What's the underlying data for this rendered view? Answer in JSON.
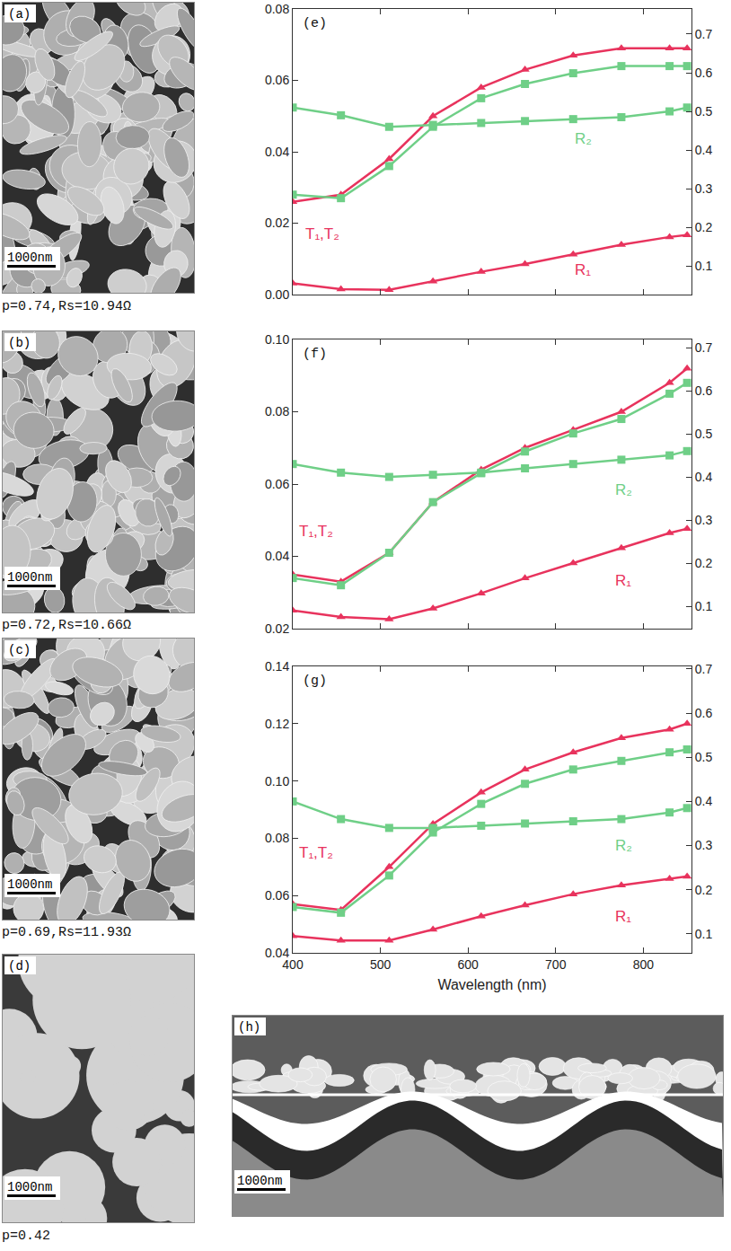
{
  "panels": [
    {
      "label": "(a)",
      "scale_bar": "1000nm",
      "caption": "p=0.74,Rs=10.94Ω"
    },
    {
      "label": "(b)",
      "scale_bar": "1000nm",
      "caption": "p=0.72,Rs=10.66Ω"
    },
    {
      "label": "(c)",
      "scale_bar": "1000nm",
      "caption": "p=0.69,Rs=11.93Ω"
    },
    {
      "label": "(d)",
      "scale_bar": "1000nm",
      "caption": "p=0.42"
    },
    {
      "label": "(h)",
      "scale_bar": "1000nm"
    }
  ],
  "chart_data": [
    {
      "type": "line",
      "label": "(e)",
      "grid": false,
      "tick_labels": "y",
      "x": [
        400,
        455,
        510,
        560,
        615,
        665,
        720,
        775,
        830,
        850
      ],
      "xlim": [
        400,
        855
      ],
      "xticks": [
        400,
        500,
        600,
        700,
        800
      ],
      "ylim": [
        0,
        0.08
      ],
      "yticks": [
        {
          "value": 0,
          "label": "0.00"
        },
        0.02,
        0.04,
        0.06,
        0.08
      ],
      "y2lim": [
        0.026,
        0.765
      ],
      "y2ticks": [
        0.1,
        0.2,
        0.3,
        0.4,
        0.5,
        0.6,
        0.7
      ],
      "series": [
        {
          "name": "T₁",
          "color": "#e8335d",
          "marker": "triangle",
          "values": [
            0.026,
            0.028,
            0.038,
            0.05,
            0.058,
            0.063,
            0.067,
            0.069,
            0.069,
            0.069
          ]
        },
        {
          "name": "T₂",
          "color": "#6fcf87",
          "marker": "square",
          "values": [
            0.028,
            0.027,
            0.036,
            0.047,
            0.055,
            0.059,
            0.062,
            0.064,
            0.064,
            0.064
          ]
        },
        {
          "name": "R₁",
          "color": "#e8335d",
          "marker": "triangle",
          "axis": "y2",
          "values": [
            0.055,
            0.04,
            0.038,
            0.06,
            0.085,
            0.105,
            0.13,
            0.155,
            0.175,
            0.18
          ]
        },
        {
          "name": "R₂",
          "color": "#6fcf87",
          "marker": "square",
          "axis": "y2",
          "values": [
            0.51,
            0.49,
            0.46,
            0.465,
            0.47,
            0.475,
            0.48,
            0.485,
            0.5,
            0.51
          ]
        }
      ],
      "annotations": [
        {
          "text": "T₁,T₂",
          "x": 412,
          "y": 0.017,
          "color": "#e8335d"
        },
        {
          "text": "R₂",
          "x": 720,
          "y": 0.43,
          "axis": "y2",
          "color": "#6fcf87"
        },
        {
          "text": "R₁",
          "x": 720,
          "y": 0.09,
          "axis": "y2",
          "color": "#e8335d"
        }
      ]
    },
    {
      "type": "line",
      "label": "(f)",
      "grid": false,
      "tick_labels": "y",
      "x": [
        400,
        455,
        510,
        560,
        615,
        665,
        720,
        775,
        830,
        850
      ],
      "xlim": [
        400,
        855
      ],
      "xticks": [
        400,
        500,
        600,
        700,
        800
      ],
      "ylim": [
        0.02,
        0.1
      ],
      "yticks": [
        0.02,
        0.04,
        0.06,
        0.08,
        {
          "value": 0.1,
          "label": "0.10"
        }
      ],
      "y2lim": [
        0.048,
        0.719
      ],
      "y2ticks": [
        0.1,
        0.2,
        0.3,
        0.4,
        0.5,
        0.6,
        0.7
      ],
      "series": [
        {
          "name": "T₁",
          "color": "#e8335d",
          "marker": "triangle",
          "values": [
            0.035,
            0.033,
            0.041,
            0.055,
            0.064,
            0.07,
            0.075,
            0.08,
            0.088,
            0.092
          ]
        },
        {
          "name": "T₂",
          "color": "#6fcf87",
          "marker": "square",
          "values": [
            0.034,
            0.032,
            0.041,
            0.055,
            0.063,
            0.069,
            0.074,
            0.078,
            0.085,
            0.088
          ]
        },
        {
          "name": "R₁",
          "color": "#e8335d",
          "marker": "triangle",
          "axis": "y2",
          "values": [
            0.09,
            0.075,
            0.07,
            0.095,
            0.13,
            0.165,
            0.2,
            0.235,
            0.27,
            0.28
          ]
        },
        {
          "name": "R₂",
          "color": "#6fcf87",
          "marker": "square",
          "axis": "y2",
          "values": [
            0.43,
            0.41,
            0.4,
            0.405,
            0.41,
            0.42,
            0.43,
            0.44,
            0.45,
            0.46
          ]
        }
      ],
      "annotations": [
        {
          "text": "T₁,T₂",
          "x": 405,
          "y": 0.047,
          "color": "#e8335d"
        },
        {
          "text": "R₂",
          "x": 766,
          "y": 0.37,
          "axis": "y2",
          "color": "#6fcf87"
        },
        {
          "text": "R₁",
          "x": 766,
          "y": 0.16,
          "axis": "y2",
          "color": "#e8335d"
        }
      ]
    },
    {
      "type": "line",
      "label": "(g)",
      "grid": false,
      "tick_labels": true,
      "xlabel": "Wavelength (nm)",
      "x": [
        400,
        455,
        510,
        560,
        615,
        665,
        720,
        775,
        830,
        850
      ],
      "xlim": [
        400,
        855
      ],
      "xticks": [
        400,
        500,
        600,
        700,
        800
      ],
      "ylim": [
        0.04,
        0.14
      ],
      "yticks": [
        0.04,
        0.06,
        0.08,
        {
          "value": 0.1,
          "label": "0.10"
        },
        0.12,
        0.14
      ],
      "y2lim": [
        0.057,
        0.706
      ],
      "y2ticks": [
        0.1,
        0.2,
        0.3,
        0.4,
        0.5,
        0.6,
        0.7
      ],
      "series": [
        {
          "name": "T₁",
          "color": "#e8335d",
          "marker": "triangle",
          "values": [
            0.057,
            0.055,
            0.07,
            0.085,
            0.096,
            0.104,
            0.11,
            0.115,
            0.118,
            0.12
          ]
        },
        {
          "name": "T₂",
          "color": "#6fcf87",
          "marker": "square",
          "values": [
            0.056,
            0.054,
            0.067,
            0.082,
            0.092,
            0.099,
            0.104,
            0.107,
            0.11,
            0.111
          ]
        },
        {
          "name": "R₁",
          "color": "#e8335d",
          "marker": "triangle",
          "axis": "y2",
          "values": [
            0.095,
            0.085,
            0.085,
            0.11,
            0.14,
            0.165,
            0.19,
            0.21,
            0.225,
            0.23
          ]
        },
        {
          "name": "R₂",
          "color": "#6fcf87",
          "marker": "square",
          "axis": "y2",
          "values": [
            0.4,
            0.36,
            0.34,
            0.34,
            0.345,
            0.35,
            0.355,
            0.36,
            0.375,
            0.385
          ]
        }
      ],
      "annotations": [
        {
          "text": "T₁,T₂",
          "x": 405,
          "y": 0.075,
          "color": "#e8335d"
        },
        {
          "text": "R₂",
          "x": 766,
          "y": 0.3,
          "axis": "y2",
          "color": "#6fcf87"
        },
        {
          "text": "R₁",
          "x": 766,
          "y": 0.14,
          "axis": "y2",
          "color": "#e8335d"
        }
      ]
    }
  ]
}
